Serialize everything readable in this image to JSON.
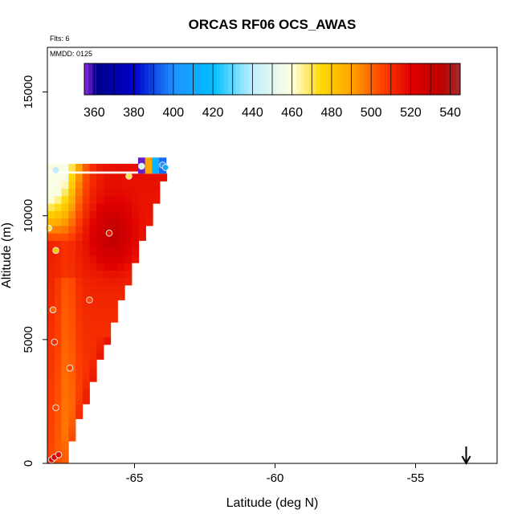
{
  "chart_data": {
    "type": "heatmap",
    "title": "ORCAS RF06 OCS_AWAS",
    "flights_label": "Flts: 6",
    "mmdd_label": "MMDD: 0125",
    "xlabel": "Latitude (deg N)",
    "ylabel": "Altitude (m)",
    "xlim": [
      -68.1,
      -52.1
    ],
    "ylim": [
      0,
      16800
    ],
    "x_ticks": [
      -65,
      -60,
      -55
    ],
    "x_tick_labels": [
      "-65",
      "-60",
      "-55"
    ],
    "y_ticks": [
      0,
      5000,
      10000,
      15000
    ],
    "y_tick_labels": [
      "0",
      "5000",
      "10000",
      "15000"
    ],
    "colorbar": {
      "range": [
        355,
        545
      ],
      "ticks": [
        360,
        380,
        400,
        420,
        440,
        460,
        480,
        500,
        520,
        540
      ],
      "tick_labels": [
        "360",
        "380",
        "400",
        "420",
        "440",
        "460",
        "480",
        "500",
        "520",
        "540"
      ],
      "stops": [
        {
          "v": 355,
          "c": "#8B2BE2"
        },
        {
          "v": 362,
          "c": "#00008B"
        },
        {
          "v": 380,
          "c": "#0000CD"
        },
        {
          "v": 400,
          "c": "#1E90FF"
        },
        {
          "v": 420,
          "c": "#00BFFF"
        },
        {
          "v": 440,
          "c": "#BFEFFF"
        },
        {
          "v": 460,
          "c": "#FFFFE0"
        },
        {
          "v": 475,
          "c": "#FFD700"
        },
        {
          "v": 490,
          "c": "#FFA500"
        },
        {
          "v": 505,
          "c": "#FF4500"
        },
        {
          "v": 520,
          "c": "#E00000"
        },
        {
          "v": 535,
          "c": "#C00000"
        },
        {
          "v": 545,
          "c": "#A52A2A"
        }
      ]
    },
    "grid": {
      "lat_start": -68.1,
      "lat_step": 0.25,
      "alt_step": 300,
      "top_band_cells": [
        {
          "lat": -64.75,
          "alt": 11850,
          "value": 357
        },
        {
          "lat": -64.5,
          "alt": 11850,
          "value": 490
        },
        {
          "lat": -64.25,
          "alt": 11850,
          "value": 415
        },
        {
          "lat": -64.0,
          "alt": 11850,
          "value": 395
        }
      ]
    },
    "observations": [
      {
        "lat": -67.95,
        "alt": 150,
        "value": 520
      },
      {
        "lat": -67.85,
        "alt": 250,
        "value": 525
      },
      {
        "lat": -67.7,
        "alt": 350,
        "value": 518
      },
      {
        "lat": -67.8,
        "alt": 2250,
        "value": 505
      },
      {
        "lat": -67.85,
        "alt": 4900,
        "value": 510
      },
      {
        "lat": -67.9,
        "alt": 6200,
        "value": 500
      },
      {
        "lat": -67.8,
        "alt": 8600,
        "value": 480
      },
      {
        "lat": -68.05,
        "alt": 9500,
        "value": 470
      },
      {
        "lat": -67.3,
        "alt": 3850,
        "value": 505
      },
      {
        "lat": -66.6,
        "alt": 6600,
        "value": 505
      },
      {
        "lat": -65.9,
        "alt": 9300,
        "value": 515
      },
      {
        "lat": -67.8,
        "alt": 11850,
        "value": 440
      },
      {
        "lat": -65.2,
        "alt": 11600,
        "value": 470
      },
      {
        "lat": -64.75,
        "alt": 12000,
        "value": 450
      },
      {
        "lat": -64.0,
        "alt": 12050,
        "value": 400
      },
      {
        "lat": -63.9,
        "alt": 11950,
        "value": 410
      }
    ],
    "arrow_marker": {
      "lat": -53.2,
      "direction": "down"
    }
  }
}
